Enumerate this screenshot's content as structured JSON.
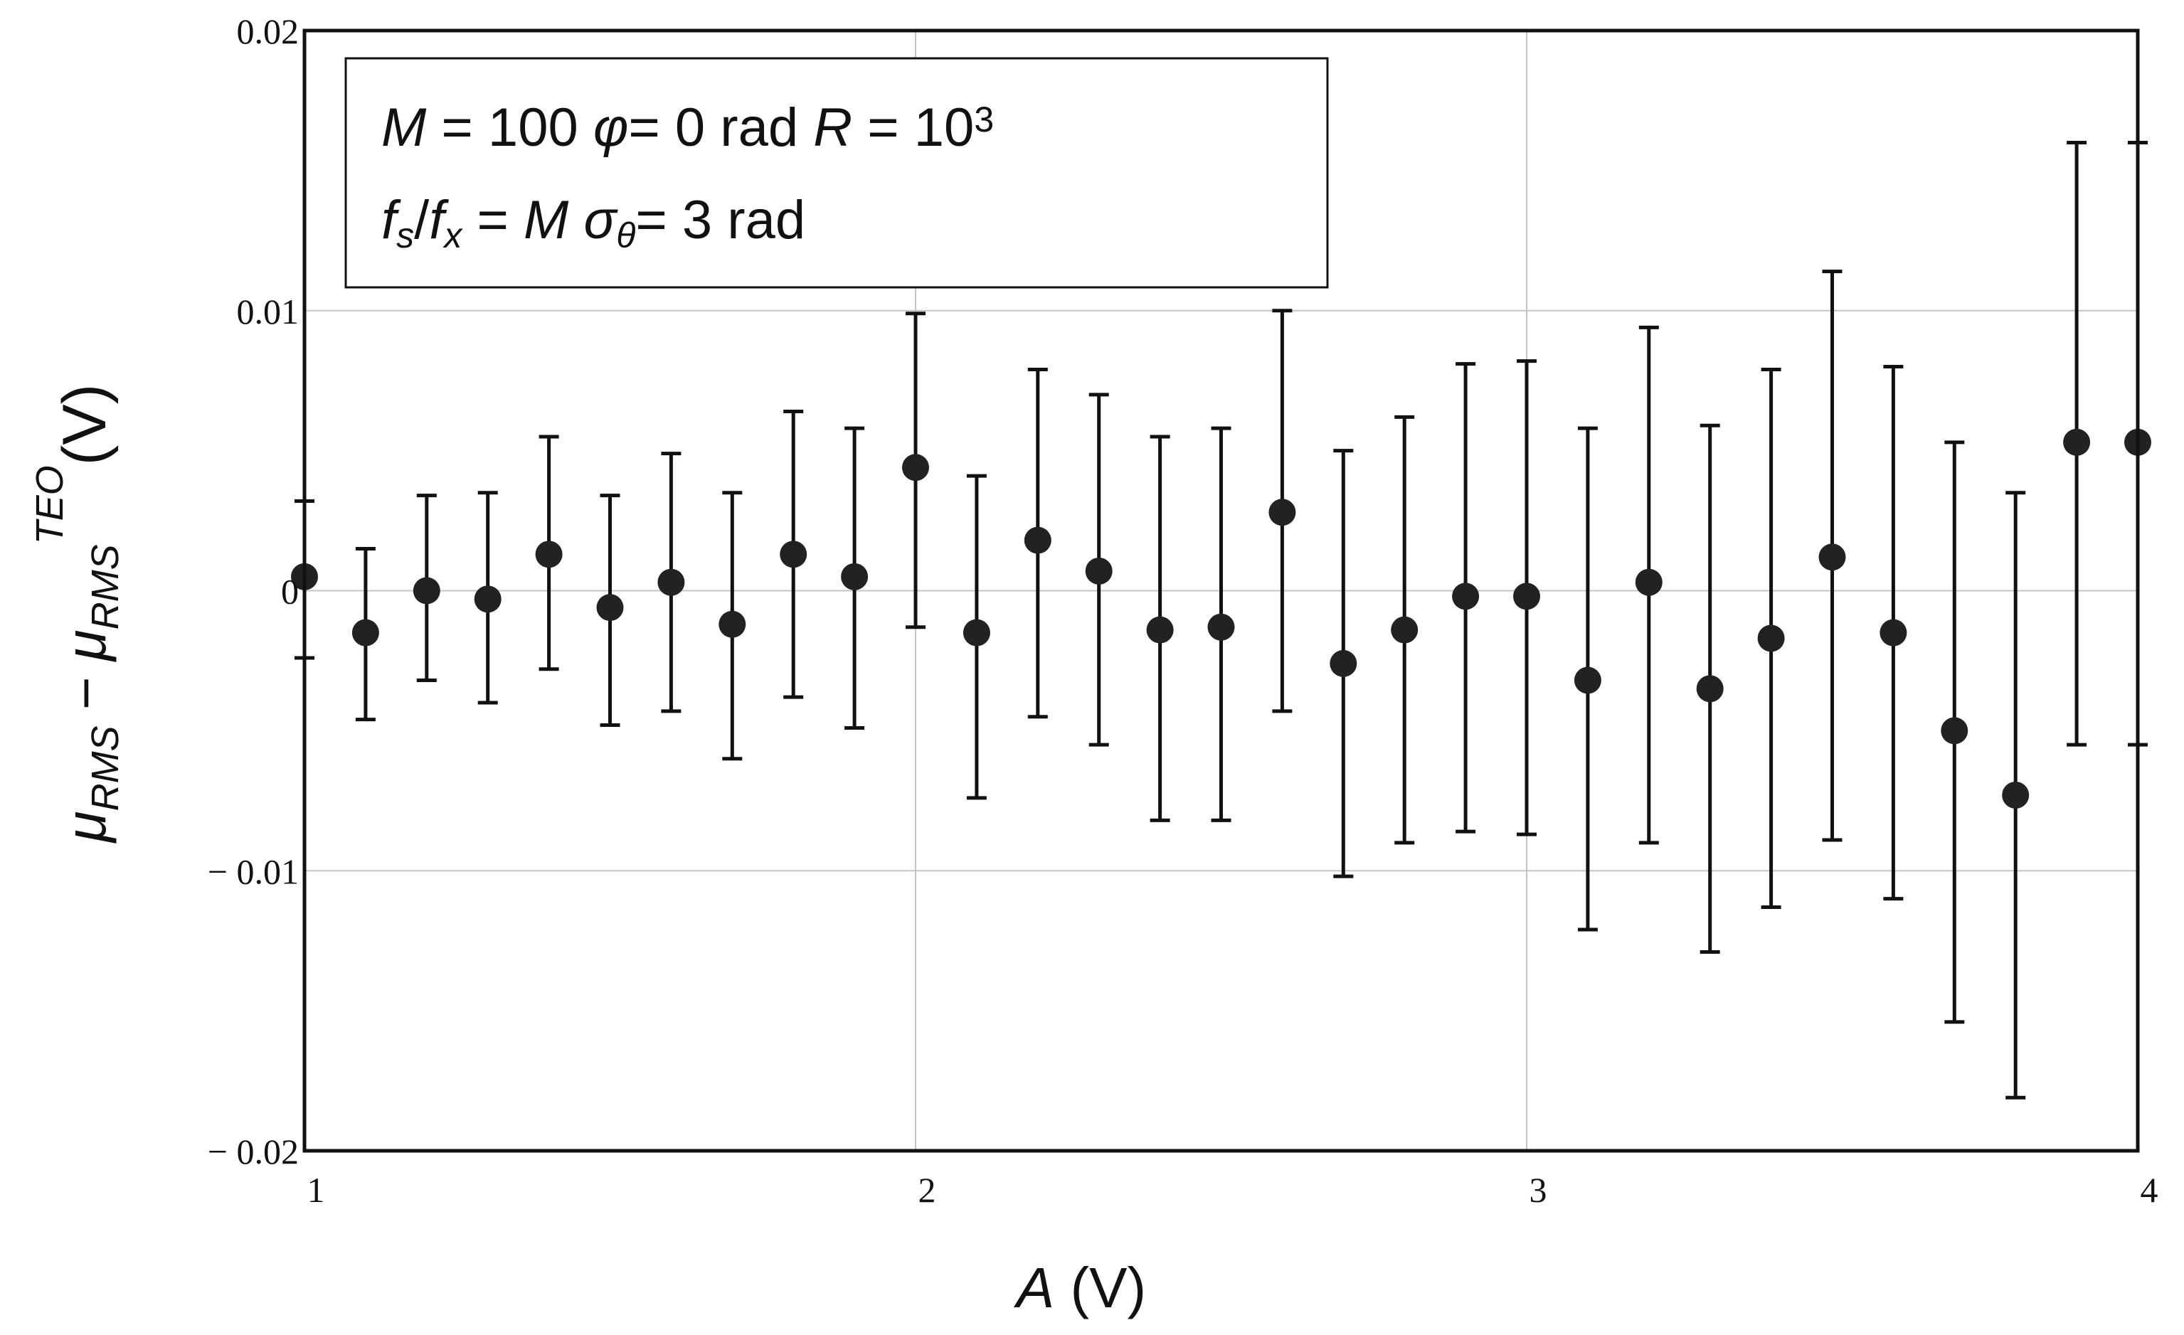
{
  "chart_data": {
    "type": "scatter",
    "xlabel": {
      "var": "A",
      "unit": " (V)"
    },
    "ylabel": {
      "mu1": "μ",
      "sub1": "RMS",
      "minus": " − ",
      "mu2": "μ",
      "sub2": "RMS",
      "sup": "TEO",
      "unit": "(V)"
    },
    "xlim": [
      1,
      4
    ],
    "ylim": [
      -0.02,
      0.02
    ],
    "x_ticks": [
      1,
      2,
      3,
      4
    ],
    "x_tick_labels": [
      "1",
      "2",
      "3",
      "4"
    ],
    "y_ticks": [
      0.02,
      0.01,
      0,
      -0.01,
      -0.02
    ],
    "y_tick_labels": [
      "0.02",
      "0.01",
      "0",
      "− 0.01",
      "− 0.02"
    ],
    "grid": true,
    "annotation": {
      "line1": [
        {
          "text": "M",
          "style": "italic"
        },
        {
          "text": " = 100  ",
          "style": "normal"
        },
        {
          "text": "φ",
          "style": "italic"
        },
        {
          "text": "= 0 rad   ",
          "style": "normal"
        },
        {
          "text": "R",
          "style": "italic"
        },
        {
          "text": " = 10",
          "style": "normal"
        },
        {
          "text": "3",
          "style": "sup"
        }
      ],
      "line2": [
        {
          "text": "f",
          "style": "italic"
        },
        {
          "text": "s",
          "style": "sub-italic"
        },
        {
          "text": "/",
          "style": "normal"
        },
        {
          "text": "f",
          "style": "italic"
        },
        {
          "text": "x",
          "style": "sub-italic"
        },
        {
          "text": " = ",
          "style": "normal"
        },
        {
          "text": "M",
          "style": "italic"
        },
        {
          "text": "  ",
          "style": "normal"
        },
        {
          "text": "σ",
          "style": "italic"
        },
        {
          "text": "θ",
          "style": "sub-italic"
        },
        {
          "text": "= 3 rad",
          "style": "normal"
        }
      ]
    },
    "series": [
      {
        "x": [
          1.0,
          1.1,
          1.2,
          1.3,
          1.4,
          1.5,
          1.6,
          1.7,
          1.8,
          1.9,
          2.0,
          2.1,
          2.2,
          2.3,
          2.4,
          2.5,
          2.6,
          2.7,
          2.8,
          2.9,
          3.0,
          3.1,
          3.2,
          3.3,
          3.4,
          3.5,
          3.6,
          3.7,
          3.8,
          3.9,
          4.0
        ],
        "y": [
          0.0005,
          -0.0015,
          0.0,
          -0.0003,
          0.0013,
          -0.0006,
          0.0003,
          -0.0012,
          0.0013,
          0.0005,
          0.0044,
          -0.0015,
          0.0018,
          0.0007,
          -0.0014,
          -0.0013,
          0.0028,
          -0.0026,
          -0.0014,
          -0.0002,
          -0.0002,
          -0.0032,
          0.0003,
          -0.0035,
          -0.0017,
          0.0012,
          -0.0015,
          -0.005,
          -0.0073,
          0.0053,
          0.0053
        ],
        "y_lower": [
          -0.0024,
          -0.0046,
          -0.0032,
          -0.004,
          -0.0028,
          -0.0048,
          -0.0043,
          -0.006,
          -0.0038,
          -0.0049,
          -0.0013,
          -0.0074,
          -0.0045,
          -0.0055,
          -0.0082,
          -0.0082,
          -0.0043,
          -0.0102,
          -0.009,
          -0.0086,
          -0.0087,
          -0.0121,
          -0.009,
          -0.0129,
          -0.0113,
          -0.0089,
          -0.011,
          -0.0154,
          -0.0181,
          -0.0055,
          -0.0055
        ],
        "y_upper": [
          0.0032,
          0.0015,
          0.0034,
          0.0035,
          0.0055,
          0.0034,
          0.0049,
          0.0035,
          0.0064,
          0.0058,
          0.0099,
          0.0041,
          0.0079,
          0.007,
          0.0055,
          0.0058,
          0.01,
          0.005,
          0.0062,
          0.0081,
          0.0082,
          0.0058,
          0.0094,
          0.0059,
          0.0079,
          0.0114,
          0.008,
          0.0053,
          0.0035,
          0.016,
          0.016
        ]
      }
    ]
  }
}
